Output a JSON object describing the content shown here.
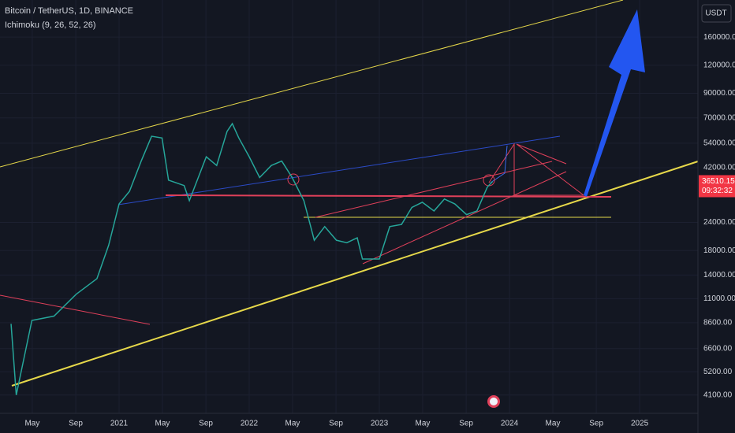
{
  "chart_data": {
    "type": "line",
    "title": "Bitcoin / TetherUS, 1D, BINANCE",
    "indicator": "Ichimoku (9, 26, 52, 26)",
    "currency": "USDT",
    "log_scale": true,
    "grid": true,
    "color": "#26a69a",
    "x": [
      2020.17,
      2020.21,
      2020.33,
      2020.5,
      2020.67,
      2020.83,
      2020.92,
      2021.0,
      2021.08,
      2021.17,
      2021.25,
      2021.33,
      2021.38,
      2021.5,
      2021.54,
      2021.67,
      2021.75,
      2021.83,
      2021.87,
      2021.92,
      2022.0,
      2022.08,
      2022.17,
      2022.25,
      2022.33,
      2022.42,
      2022.5,
      2022.58,
      2022.67,
      2022.75,
      2022.83,
      2022.87,
      2023.0,
      2023.08,
      2023.17,
      2023.25,
      2023.33,
      2023.42,
      2023.5,
      2023.58,
      2023.67,
      2023.75,
      2023.83,
      2023.87
    ],
    "values": [
      8500,
      4100,
      8800,
      9200,
      11500,
      13500,
      19000,
      29000,
      33000,
      45000,
      58000,
      57000,
      37000,
      35000,
      30000,
      47000,
      43000,
      61000,
      66000,
      57000,
      47000,
      38000,
      43000,
      45000,
      38000,
      30000,
      20000,
      23000,
      20000,
      19500,
      20500,
      16500,
      16500,
      23000,
      23500,
      28000,
      29500,
      27000,
      30500,
      29000,
      26000,
      27000,
      34500,
      36510.15
    ],
    "last_price": 36510.15,
    "countdown": "09:32:32",
    "xlim": [
      2020.085,
      2025.448
    ],
    "xticks": [
      {
        "value": 2020.333,
        "label": "May"
      },
      {
        "value": 2020.667,
        "label": "Sep"
      },
      2021,
      {
        "value": 2021.333,
        "label": "May"
      },
      {
        "value": 2021.667,
        "label": "Sep"
      },
      2022,
      {
        "value": 2022.333,
        "label": "May"
      },
      {
        "value": 2022.667,
        "label": "Sep"
      },
      2023,
      {
        "value": 2023.333,
        "label": "May"
      },
      {
        "value": 2023.667,
        "label": "Sep"
      },
      2024,
      {
        "value": 2024.333,
        "label": "May"
      },
      {
        "value": 2024.667,
        "label": "Sep"
      },
      2025
    ],
    "ylim": [
      3400,
      234000
    ],
    "yticks": [
      {
        "value": 160000,
        "label": "160000.00"
      },
      {
        "value": 120000,
        "label": "120000.00"
      },
      {
        "value": 90000,
        "label": "90000.00"
      },
      {
        "value": 70000,
        "label": "70000.00"
      },
      {
        "value": 54000,
        "label": "54000.00"
      },
      {
        "value": 42000,
        "label": "42000.00"
      },
      {
        "value": 24000,
        "label": "24000.00"
      },
      {
        "value": 18000,
        "label": "18000.00"
      },
      {
        "value": 14000,
        "label": "14000.00"
      },
      {
        "value": 11000,
        "label": "11000.00"
      },
      {
        "value": 8600,
        "label": "8600.00"
      },
      {
        "value": 6600,
        "label": "6600.00"
      },
      {
        "value": 5200,
        "label": "5200.00"
      },
      {
        "value": 4100,
        "label": "4100.00"
      }
    ]
  }
}
